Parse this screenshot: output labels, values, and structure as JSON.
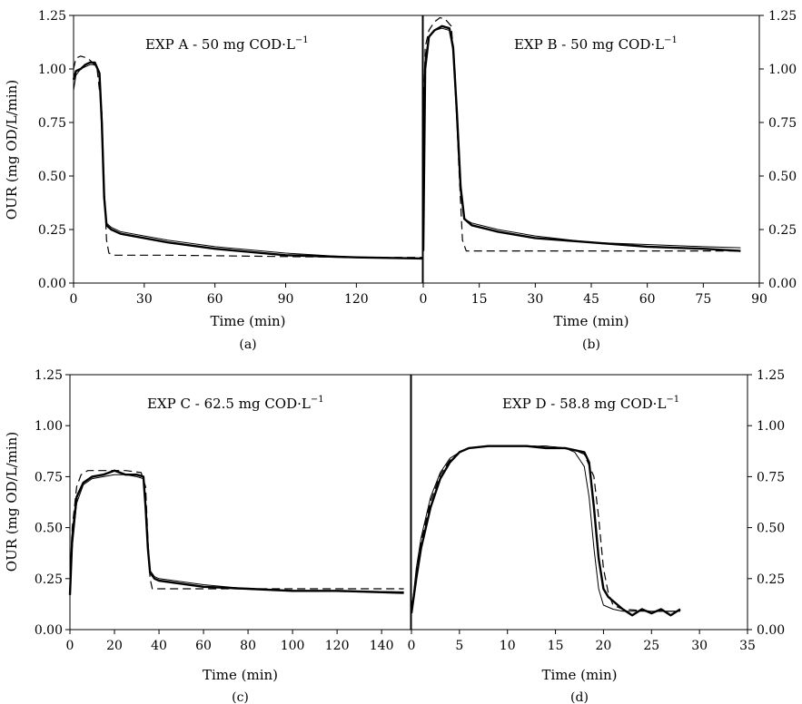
{
  "figure": {
    "ylabel": "OUR (mg OD/L/min)"
  },
  "chart_data": [
    {
      "id": "A",
      "type": "line",
      "caption": "(a)",
      "title_main": "EXP A  - 50 mg COD·L",
      "title_sup": "−1",
      "xlabel": "Time (min)",
      "ylabel": "OUR (mg OD/L/min)",
      "xlim": [
        0,
        148
      ],
      "ylim": [
        0,
        1.25
      ],
      "xticks": [
        0,
        30,
        60,
        90,
        120
      ],
      "yticks": [
        0.0,
        0.25,
        0.5,
        0.75,
        1.0,
        1.25
      ],
      "y_axis_side": "left",
      "series": [
        {
          "style": "measured",
          "x": [
            0,
            1,
            3,
            5,
            7,
            9,
            11,
            12,
            13,
            14,
            16,
            20,
            30,
            40,
            60,
            90,
            120,
            148
          ],
          "y": [
            0.95,
            0.99,
            1.0,
            1.02,
            1.03,
            1.03,
            0.98,
            0.75,
            0.4,
            0.27,
            0.25,
            0.23,
            0.21,
            0.19,
            0.16,
            0.13,
            0.12,
            0.115
          ]
        },
        {
          "style": "model-thin",
          "x": [
            0,
            1,
            3,
            5,
            7,
            9,
            11,
            12,
            13,
            14,
            16,
            20,
            30,
            40,
            60,
            90,
            120,
            148
          ],
          "y": [
            0.9,
            0.97,
            1.0,
            1.01,
            1.02,
            1.02,
            0.98,
            0.7,
            0.4,
            0.28,
            0.26,
            0.24,
            0.22,
            0.2,
            0.17,
            0.14,
            0.12,
            0.115
          ]
        },
        {
          "style": "model-dashed",
          "x": [
            0,
            1,
            3,
            6,
            8,
            10,
            12,
            13,
            14,
            15,
            17,
            20,
            40,
            80,
            120,
            148
          ],
          "y": [
            1.0,
            1.05,
            1.06,
            1.05,
            1.03,
            1.0,
            0.8,
            0.45,
            0.2,
            0.14,
            0.13,
            0.13,
            0.13,
            0.125,
            0.12,
            0.12
          ]
        }
      ]
    },
    {
      "id": "B",
      "type": "line",
      "caption": "(b)",
      "title_main": "EXP B  - 50 mg COD·L",
      "title_sup": "−1",
      "xlabel": "Time (min)",
      "ylabel": "",
      "xlim": [
        0,
        90
      ],
      "ylim": [
        0,
        1.25
      ],
      "xticks": [
        0,
        15,
        30,
        45,
        60,
        75,
        90
      ],
      "yticks": [
        0.0,
        0.25,
        0.5,
        0.75,
        1.0,
        1.25
      ],
      "y_axis_side": "right",
      "series": [
        {
          "style": "measured",
          "x": [
            0,
            0.5,
            1.5,
            3,
            5,
            7,
            8,
            9,
            10,
            11,
            13,
            20,
            30,
            45,
            60,
            75,
            85
          ],
          "y": [
            0.15,
            1.0,
            1.15,
            1.18,
            1.2,
            1.19,
            1.1,
            0.8,
            0.45,
            0.3,
            0.27,
            0.24,
            0.21,
            0.19,
            0.17,
            0.16,
            0.15
          ]
        },
        {
          "style": "model-thin",
          "x": [
            0,
            0.5,
            1.5,
            3,
            5,
            7,
            8,
            9,
            10,
            11,
            13,
            20,
            30,
            45,
            60,
            75,
            85
          ],
          "y": [
            0.6,
            1.05,
            1.15,
            1.18,
            1.19,
            1.18,
            1.08,
            0.75,
            0.42,
            0.3,
            0.28,
            0.25,
            0.22,
            0.19,
            0.18,
            0.17,
            0.165
          ]
        },
        {
          "style": "model-dashed",
          "x": [
            0,
            0.5,
            1.5,
            3,
            4.5,
            6,
            7.5,
            8.5,
            9.5,
            10.5,
            11.5,
            15,
            40,
            85
          ],
          "y": [
            0.7,
            1.1,
            1.18,
            1.22,
            1.24,
            1.23,
            1.2,
            1.0,
            0.55,
            0.2,
            0.15,
            0.15,
            0.15,
            0.15
          ]
        }
      ]
    },
    {
      "id": "C",
      "type": "line",
      "caption": "(c)",
      "title_main": "EXP C - 62.5 mg COD·L",
      "title_sup": "−1",
      "xlabel": "Time (min)",
      "ylabel": "OUR (mg OD/L/min)",
      "xlim": [
        0,
        153
      ],
      "ylim": [
        0,
        1.25
      ],
      "xticks": [
        0,
        20,
        40,
        60,
        80,
        100,
        120,
        140
      ],
      "yticks": [
        0.0,
        0.25,
        0.5,
        0.75,
        1.0,
        1.25
      ],
      "y_axis_side": "left",
      "series": [
        {
          "style": "measured",
          "x": [
            0,
            1,
            3,
            6,
            10,
            15,
            20,
            25,
            30,
            33,
            34,
            35,
            36,
            38,
            40,
            60,
            80,
            100,
            120,
            150
          ],
          "y": [
            0.17,
            0.45,
            0.65,
            0.72,
            0.75,
            0.76,
            0.78,
            0.76,
            0.76,
            0.75,
            0.6,
            0.4,
            0.28,
            0.25,
            0.24,
            0.21,
            0.2,
            0.19,
            0.19,
            0.18
          ]
        },
        {
          "style": "model-thin",
          "x": [
            0,
            1,
            3,
            6,
            10,
            15,
            20,
            25,
            30,
            33,
            34,
            35,
            36,
            38,
            40,
            60,
            80,
            100,
            120,
            150
          ],
          "y": [
            0.17,
            0.4,
            0.62,
            0.71,
            0.74,
            0.75,
            0.76,
            0.76,
            0.75,
            0.74,
            0.62,
            0.42,
            0.29,
            0.26,
            0.25,
            0.22,
            0.2,
            0.19,
            0.19,
            0.185
          ]
        },
        {
          "style": "model-dashed",
          "x": [
            0,
            1,
            3,
            5,
            8,
            15,
            25,
            32,
            34,
            35,
            36,
            37,
            40,
            80,
            150
          ],
          "y": [
            0.17,
            0.5,
            0.7,
            0.76,
            0.78,
            0.78,
            0.78,
            0.77,
            0.7,
            0.45,
            0.25,
            0.2,
            0.2,
            0.2,
            0.2
          ]
        }
      ]
    },
    {
      "id": "D",
      "type": "line",
      "caption": "(d)",
      "title_main": "EXP D - 58.8 mg COD·L",
      "title_sup": "−1",
      "xlabel": "Time (min)",
      "ylabel": "",
      "xlim": [
        0,
        35
      ],
      "ylim": [
        0,
        1.25
      ],
      "xticks": [
        0,
        5,
        10,
        15,
        20,
        25,
        30,
        35
      ],
      "yticks": [
        0.0,
        0.25,
        0.5,
        0.75,
        1.0,
        1.25
      ],
      "y_axis_side": "right",
      "series": [
        {
          "style": "measured",
          "x": [
            0,
            0.5,
            1,
            2,
            3,
            4,
            5,
            6,
            8,
            10,
            12,
            14,
            16,
            17,
            18,
            18.5,
            19,
            19.5,
            20,
            20.5,
            21,
            22,
            23,
            24,
            25,
            26,
            27,
            28
          ],
          "y": [
            0.08,
            0.25,
            0.4,
            0.6,
            0.74,
            0.82,
            0.87,
            0.89,
            0.9,
            0.9,
            0.9,
            0.89,
            0.89,
            0.88,
            0.87,
            0.82,
            0.6,
            0.35,
            0.2,
            0.16,
            0.14,
            0.1,
            0.07,
            0.1,
            0.08,
            0.1,
            0.07,
            0.1
          ]
        },
        {
          "style": "model-thin",
          "x": [
            0,
            0.5,
            1,
            2,
            3,
            4,
            5,
            6,
            8,
            10,
            12,
            14,
            16,
            17,
            18,
            18.5,
            19,
            19.5,
            20,
            21,
            22,
            25,
            28
          ],
          "y": [
            0.08,
            0.3,
            0.45,
            0.65,
            0.77,
            0.84,
            0.87,
            0.89,
            0.9,
            0.9,
            0.9,
            0.9,
            0.89,
            0.87,
            0.8,
            0.65,
            0.4,
            0.2,
            0.12,
            0.1,
            0.09,
            0.09,
            0.09
          ]
        },
        {
          "style": "model-dashed",
          "x": [
            0,
            0.5,
            1,
            2,
            3,
            4,
            5,
            6,
            8,
            10,
            12,
            14,
            16,
            17,
            18,
            19,
            19.5,
            20,
            20.5,
            21,
            22,
            25,
            28
          ],
          "y": [
            0.08,
            0.28,
            0.43,
            0.63,
            0.76,
            0.83,
            0.87,
            0.89,
            0.9,
            0.9,
            0.9,
            0.9,
            0.89,
            0.88,
            0.86,
            0.75,
            0.55,
            0.3,
            0.18,
            0.12,
            0.1,
            0.09,
            0.09
          ]
        }
      ]
    }
  ]
}
